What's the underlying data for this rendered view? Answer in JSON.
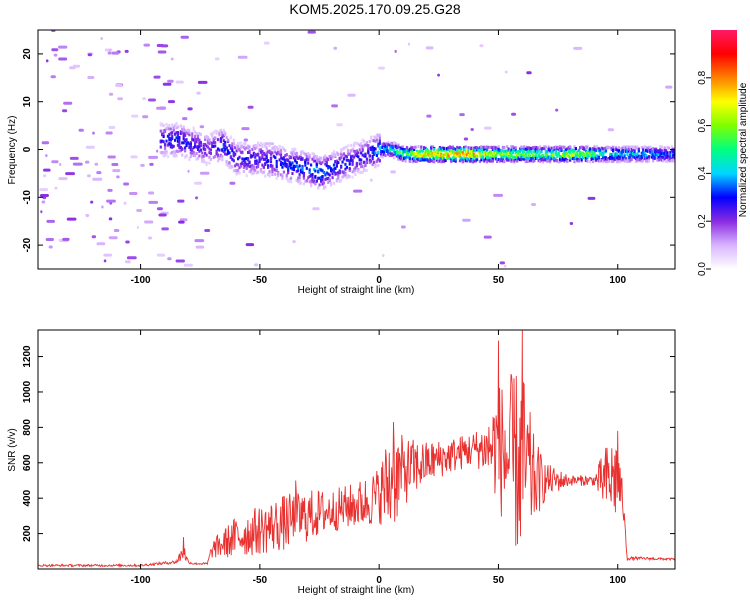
{
  "title": "KOM5.2025.170.09.25.G28",
  "chart_data": [
    {
      "type": "heatmap",
      "name": "spectrogram",
      "xlabel": "Height of straight line (km)",
      "ylabel": "Frequency (Hz)",
      "xlim": [
        -143,
        124
      ],
      "ylim": [
        -25,
        25
      ],
      "xticks": [
        -100,
        -50,
        0,
        50,
        100
      ],
      "yticks": [
        -20,
        -10,
        0,
        10,
        20
      ],
      "colorbar": {
        "label": "Normalized spectral amplitude",
        "range": [
          0,
          1
        ],
        "ticks": [
          0.0,
          0.2,
          0.4,
          0.6,
          0.8
        ],
        "colors": [
          "#ffffff",
          "#d8b4ff",
          "#8a2be2",
          "#0000ff",
          "#00d7ff",
          "#00ff7f",
          "#7fff00",
          "#ffff00",
          "#ff8000",
          "#ff0000",
          "#ff1a66"
        ]
      },
      "ridge": {
        "x": [
          -92,
          -85,
          -78,
          -72,
          -66,
          -60,
          -50,
          -40,
          -30,
          -25,
          -20,
          -10,
          -5,
          0,
          5,
          10,
          20,
          30,
          40,
          50,
          60,
          70,
          80,
          90,
          100,
          110,
          124
        ],
        "freq": [
          2,
          2,
          1,
          0,
          1,
          -2,
          -2,
          -3,
          -4,
          -5,
          -4,
          -2,
          -1,
          0,
          0,
          -1,
          -1,
          -1,
          -1,
          -1,
          -1,
          -1,
          -1,
          -1,
          -1,
          -1,
          -1
        ],
        "amplitude": [
          0.3,
          0.35,
          0.3,
          0.25,
          0.35,
          0.3,
          0.3,
          0.35,
          0.4,
          0.45,
          0.35,
          0.3,
          0.3,
          0.45,
          0.5,
          0.6,
          0.85,
          0.9,
          0.85,
          0.7,
          0.7,
          0.6,
          0.75,
          0.6,
          0.5,
          0.45,
          0.4
        ]
      }
    },
    {
      "type": "line",
      "name": "snr",
      "xlabel": "Height of straight line (km)",
      "ylabel": "SNR (v/v)",
      "xlim": [
        -143,
        124
      ],
      "ylim": [
        0,
        1350
      ],
      "xticks": [
        -100,
        -50,
        0,
        50,
        100
      ],
      "yticks": [
        200,
        400,
        600,
        800,
        1000,
        1200
      ],
      "color": "#e8302f",
      "envelope": {
        "x": [
          -143,
          -100,
          -85,
          -82,
          -80,
          -78,
          -72,
          -70,
          -60,
          -50,
          -40,
          -30,
          -20,
          -10,
          -5,
          0,
          5,
          10,
          20,
          30,
          40,
          45,
          50,
          55,
          60,
          65,
          70,
          80,
          90,
          95,
          100,
          102,
          104,
          110,
          124
        ],
        "base": [
          20,
          20,
          40,
          100,
          40,
          30,
          30,
          110,
          180,
          220,
          260,
          300,
          330,
          360,
          380,
          420,
          500,
          550,
          600,
          640,
          680,
          680,
          700,
          600,
          600,
          500,
          500,
          500,
          500,
          500,
          520,
          400,
          60,
          60,
          55
        ],
        "amp": [
          6,
          6,
          10,
          60,
          8,
          5,
          6,
          50,
          120,
          140,
          160,
          150,
          120,
          130,
          150,
          160,
          320,
          200,
          120,
          100,
          100,
          150,
          350,
          500,
          550,
          250,
          100,
          30,
          30,
          200,
          260,
          80,
          10,
          8,
          6
        ]
      },
      "peaks": [
        {
          "x": -82,
          "y": 180
        },
        {
          "x": -35,
          "y": 500
        },
        {
          "x": 6,
          "y": 830
        },
        {
          "x": 50,
          "y": 1290
        },
        {
          "x": 60,
          "y": 1350
        },
        {
          "x": 100,
          "y": 780
        }
      ]
    }
  ]
}
